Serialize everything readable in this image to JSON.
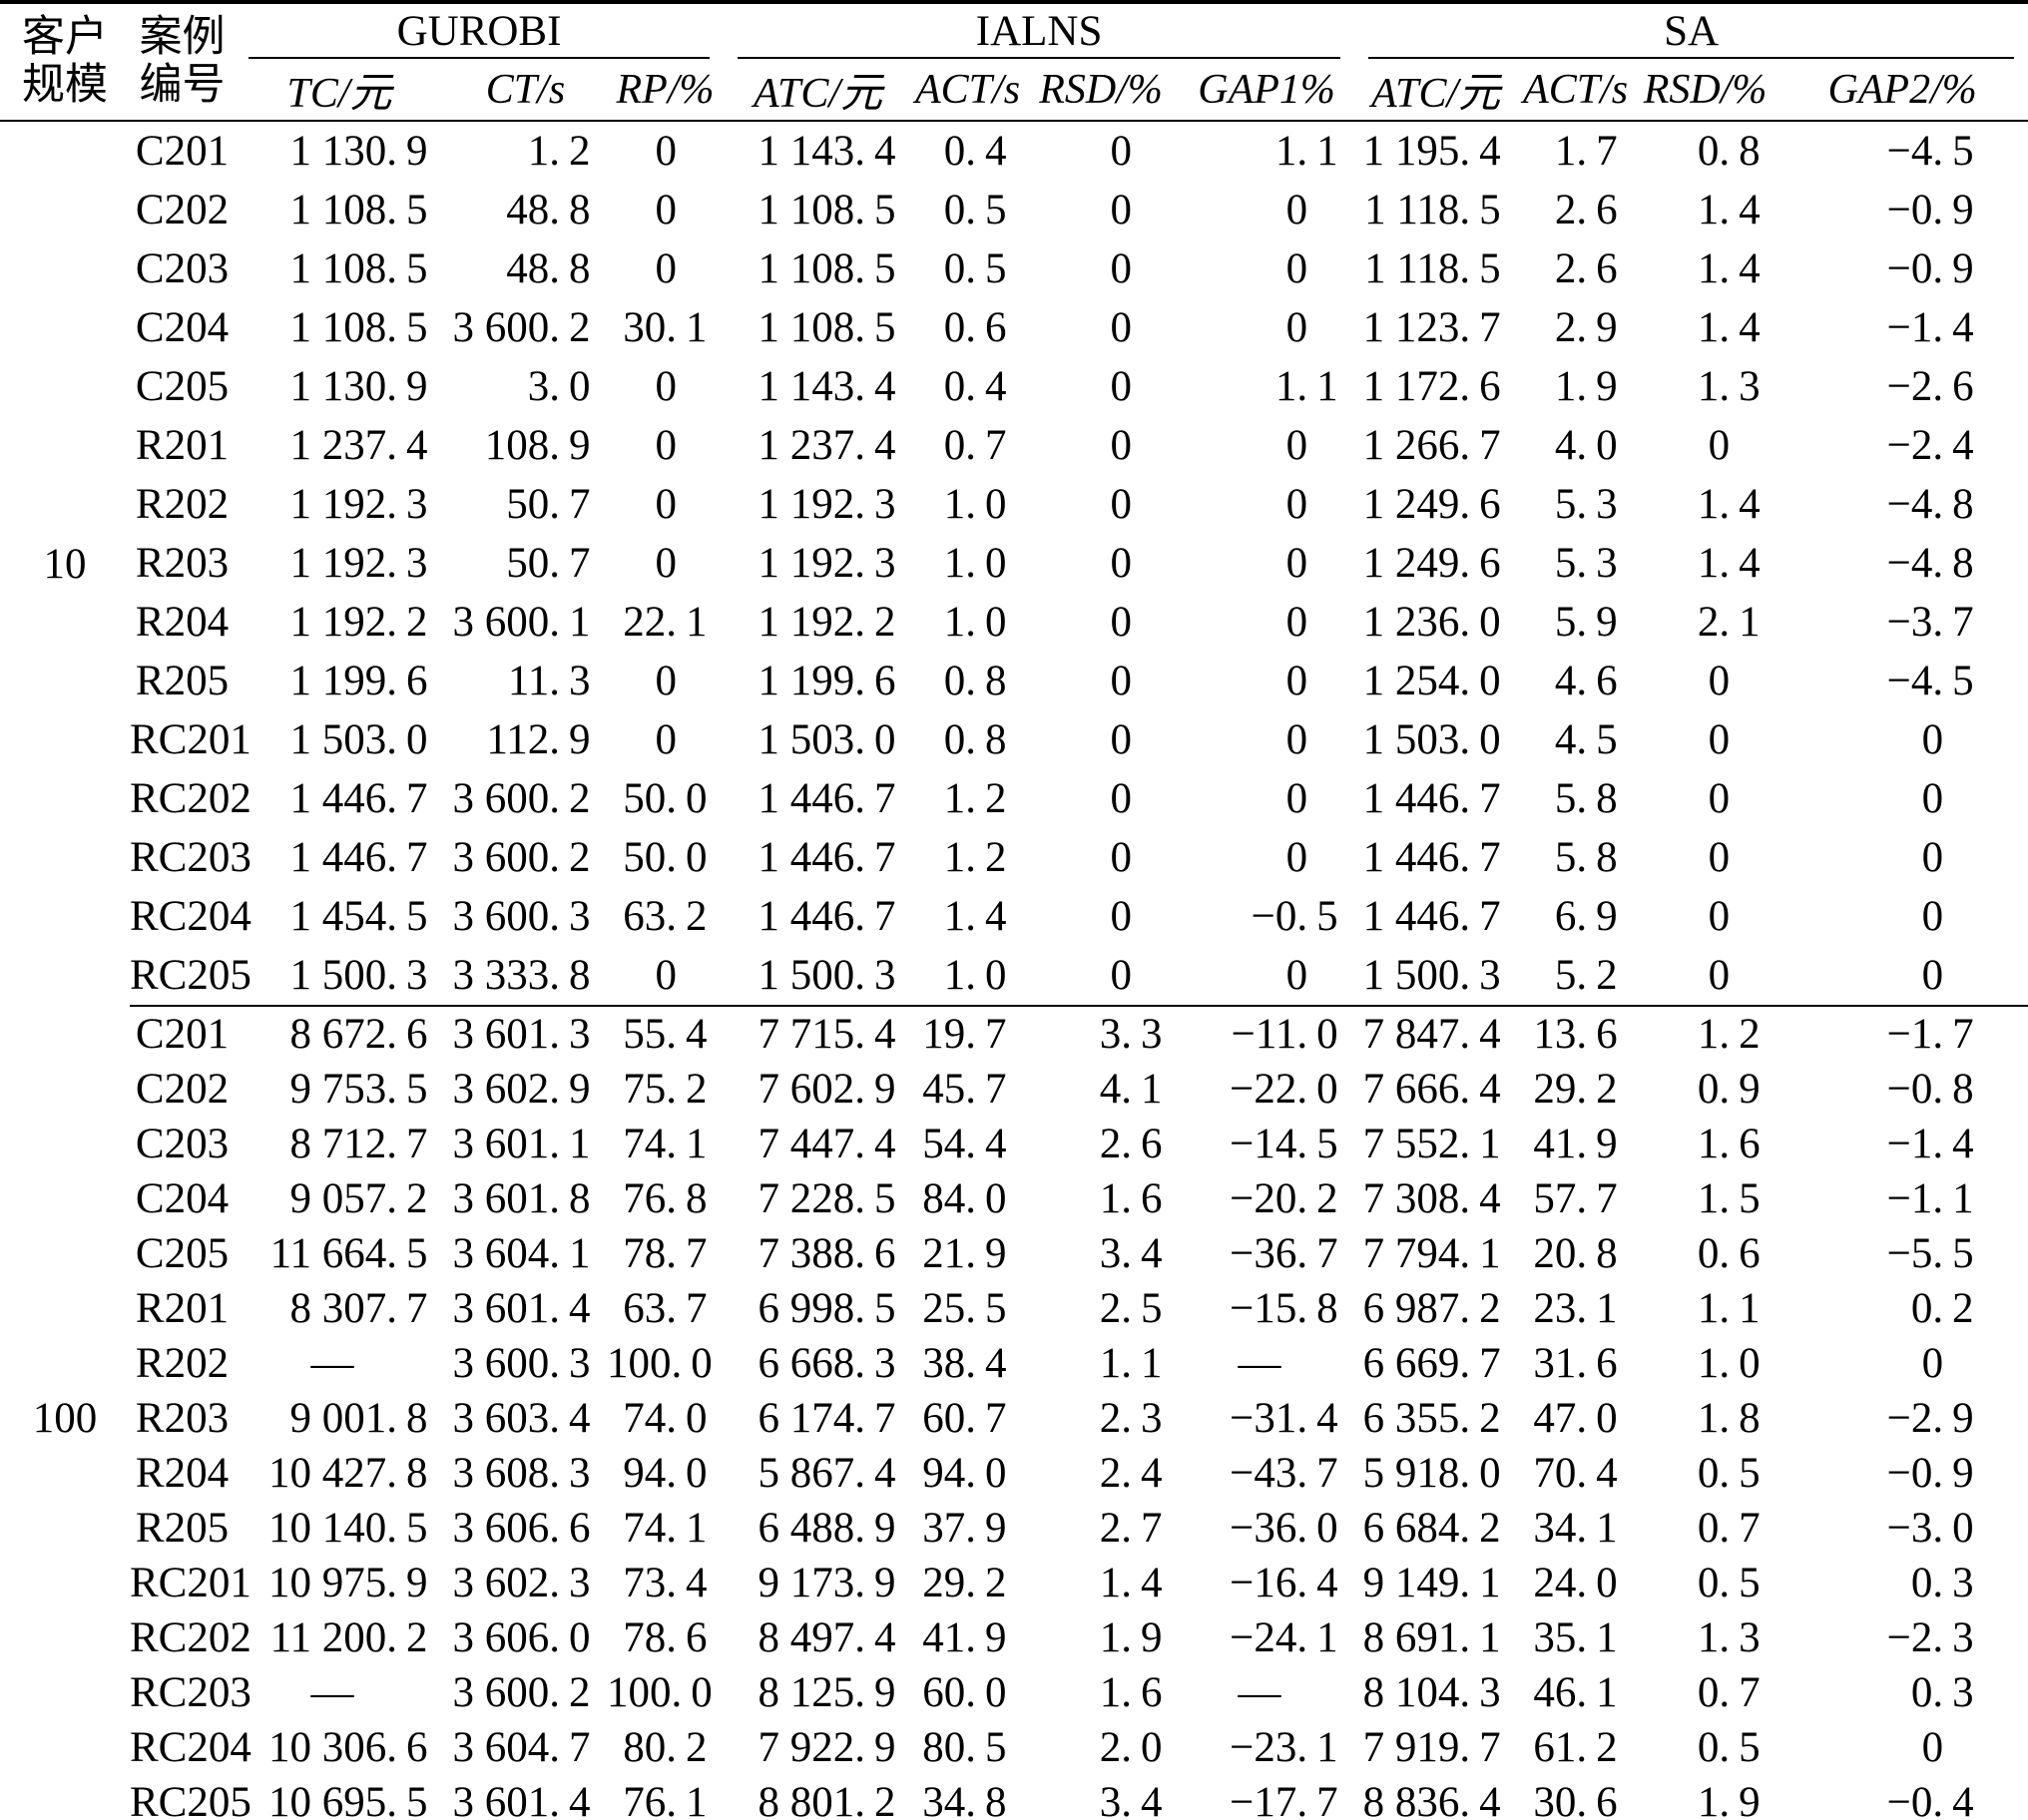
{
  "header": {
    "scale_top": "客户",
    "scale_bottom": "规模",
    "case_top": "案例",
    "case_bottom": "编号"
  },
  "table": {
    "col_keys": [
      "tc",
      "ct",
      "rp",
      "ialns-atc",
      "ialns-act",
      "ialns-rsd",
      "gap1",
      "sa-atc",
      "sa-act",
      "sa-rsd",
      "gap2"
    ],
    "groups": [
      {
        "name": "GUROBI",
        "cols": [
          "TC/元",
          "CT/s",
          "RP/%"
        ]
      },
      {
        "name": "IALNS",
        "cols": [
          "ATC/元",
          "ACT/s",
          "RSD/%",
          "GAP1%"
        ]
      },
      {
        "name": "SA",
        "cols": [
          "ATC/元",
          "ACT/s",
          "RSD/%",
          "GAP2/%"
        ]
      }
    ],
    "row_groups": [
      {
        "scale": "10",
        "rows": [
          {
            "case": "C201",
            "values": [
              "1 130.9",
              "1.2",
              "0",
              "1 143.4",
              "0.4",
              "0",
              "1.1",
              "1 195.4",
              "1.7",
              "0.8",
              "−4.5"
            ]
          },
          {
            "case": "C202",
            "values": [
              "1 108.5",
              "48.8",
              "0",
              "1 108.5",
              "0.5",
              "0",
              "0",
              "1 118.5",
              "2.6",
              "1.4",
              "−0.9"
            ]
          },
          {
            "case": "C203",
            "values": [
              "1 108.5",
              "48.8",
              "0",
              "1 108.5",
              "0.5",
              "0",
              "0",
              "1 118.5",
              "2.6",
              "1.4",
              "−0.9"
            ]
          },
          {
            "case": "C204",
            "values": [
              "1 108.5",
              "3 600.2",
              "30.1",
              "1 108.5",
              "0.6",
              "0",
              "0",
              "1 123.7",
              "2.9",
              "1.4",
              "−1.4"
            ]
          },
          {
            "case": "C205",
            "values": [
              "1 130.9",
              "3.0",
              "0",
              "1 143.4",
              "0.4",
              "0",
              "1.1",
              "1 172.6",
              "1.9",
              "1.3",
              "−2.6"
            ]
          },
          {
            "case": "R201",
            "values": [
              "1 237.4",
              "108.9",
              "0",
              "1 237.4",
              "0.7",
              "0",
              "0",
              "1 266.7",
              "4.0",
              "0",
              "−2.4"
            ]
          },
          {
            "case": "R202",
            "values": [
              "1 192.3",
              "50.7",
              "0",
              "1 192.3",
              "1.0",
              "0",
              "0",
              "1 249.6",
              "5.3",
              "1.4",
              "−4.8"
            ]
          },
          {
            "case": "R203",
            "values": [
              "1 192.3",
              "50.7",
              "0",
              "1 192.3",
              "1.0",
              "0",
              "0",
              "1 249.6",
              "5.3",
              "1.4",
              "−4.8"
            ]
          },
          {
            "case": "R204",
            "values": [
              "1 192.2",
              "3 600.1",
              "22.1",
              "1 192.2",
              "1.0",
              "0",
              "0",
              "1 236.0",
              "5.9",
              "2.1",
              "−3.7"
            ]
          },
          {
            "case": "R205",
            "values": [
              "1 199.6",
              "11.3",
              "0",
              "1 199.6",
              "0.8",
              "0",
              "0",
              "1 254.0",
              "4.6",
              "0",
              "−4.5"
            ]
          },
          {
            "case": "RC201",
            "values": [
              "1 503.0",
              "112.9",
              "0",
              "1 503.0",
              "0.8",
              "0",
              "0",
              "1 503.0",
              "4.5",
              "0",
              "0"
            ]
          },
          {
            "case": "RC202",
            "values": [
              "1 446.7",
              "3 600.2",
              "50.0",
              "1 446.7",
              "1.2",
              "0",
              "0",
              "1 446.7",
              "5.8",
              "0",
              "0"
            ]
          },
          {
            "case": "RC203",
            "values": [
              "1 446.7",
              "3 600.2",
              "50.0",
              "1 446.7",
              "1.2",
              "0",
              "0",
              "1 446.7",
              "5.8",
              "0",
              "0"
            ]
          },
          {
            "case": "RC204",
            "values": [
              "1 454.5",
              "3 600.3",
              "63.2",
              "1 446.7",
              "1.4",
              "0",
              "−0.5",
              "1 446.7",
              "6.9",
              "0",
              "0"
            ]
          },
          {
            "case": "RC205",
            "values": [
              "1 500.3",
              "3 333.8",
              "0",
              "1 500.3",
              "1.0",
              "0",
              "0",
              "1 500.3",
              "5.2",
              "0",
              "0"
            ]
          }
        ]
      },
      {
        "scale": "100",
        "rows": [
          {
            "case": "C201",
            "values": [
              "8 672.6",
              "3 601.3",
              "55.4",
              "7 715.4",
              "19.7",
              "3.3",
              "−11.0",
              "7 847.4",
              "13.6",
              "1.2",
              "−1.7"
            ]
          },
          {
            "case": "C202",
            "values": [
              "9 753.5",
              "3 602.9",
              "75.2",
              "7 602.9",
              "45.7",
              "4.1",
              "−22.0",
              "7 666.4",
              "29.2",
              "0.9",
              "−0.8"
            ]
          },
          {
            "case": "C203",
            "values": [
              "8 712.7",
              "3 601.1",
              "74.1",
              "7 447.4",
              "54.4",
              "2.6",
              "−14.5",
              "7 552.1",
              "41.9",
              "1.6",
              "−1.4"
            ]
          },
          {
            "case": "C204",
            "values": [
              "9 057.2",
              "3 601.8",
              "76.8",
              "7 228.5",
              "84.0",
              "1.6",
              "−20.2",
              "7 308.4",
              "57.7",
              "1.5",
              "−1.1"
            ]
          },
          {
            "case": "C205",
            "values": [
              "11 664.5",
              "3 604.1",
              "78.7",
              "7 388.6",
              "21.9",
              "3.4",
              "−36.7",
              "7 794.1",
              "20.8",
              "0.6",
              "−5.5"
            ]
          },
          {
            "case": "R201",
            "values": [
              "8 307.7",
              "3 601.4",
              "63.7",
              "6 998.5",
              "25.5",
              "2.5",
              "−15.8",
              "6 987.2",
              "23.1",
              "1.1",
              "0.2"
            ]
          },
          {
            "case": "R202",
            "values": [
              "—",
              "3 600.3",
              "100.0",
              "6 668.3",
              "38.4",
              "1.1",
              "—",
              "6 669.7",
              "31.6",
              "1.0",
              "0"
            ]
          },
          {
            "case": "R203",
            "values": [
              "9 001.8",
              "3 603.4",
              "74.0",
              "6 174.7",
              "60.7",
              "2.3",
              "−31.4",
              "6 355.2",
              "47.0",
              "1.8",
              "−2.9"
            ]
          },
          {
            "case": "R204",
            "values": [
              "10 427.8",
              "3 608.3",
              "94.0",
              "5 867.4",
              "94.0",
              "2.4",
              "−43.7",
              "5 918.0",
              "70.4",
              "0.5",
              "−0.9"
            ]
          },
          {
            "case": "R205",
            "values": [
              "10 140.5",
              "3 606.6",
              "74.1",
              "6 488.9",
              "37.9",
              "2.7",
              "−36.0",
              "6 684.2",
              "34.1",
              "0.7",
              "−3.0"
            ]
          },
          {
            "case": "RC201",
            "values": [
              "10 975.9",
              "3 602.3",
              "73.4",
              "9 173.9",
              "29.2",
              "1.4",
              "−16.4",
              "9 149.1",
              "24.0",
              "0.5",
              "0.3"
            ]
          },
          {
            "case": "RC202",
            "values": [
              "11 200.2",
              "3 606.0",
              "78.6",
              "8 497.4",
              "41.9",
              "1.9",
              "−24.1",
              "8 691.1",
              "35.1",
              "1.3",
              "−2.3"
            ]
          },
          {
            "case": "RC203",
            "values": [
              "—",
              "3 600.2",
              "100.0",
              "8 125.9",
              "60.0",
              "1.6",
              "—",
              "8 104.3",
              "46.1",
              "0.7",
              "0.3"
            ]
          },
          {
            "case": "RC204",
            "values": [
              "10 306.6",
              "3 604.7",
              "80.2",
              "7 922.9",
              "80.5",
              "2.0",
              "−23.1",
              "7 919.7",
              "61.2",
              "0.5",
              "0"
            ]
          },
          {
            "case": "RC205",
            "values": [
              "10 695.5",
              "3 601.4",
              "76.1",
              "8 801.2",
              "34.8",
              "3.4",
              "−17.7",
              "8 836.4",
              "30.6",
              "1.9",
              "−0.4"
            ]
          }
        ]
      }
    ]
  }
}
